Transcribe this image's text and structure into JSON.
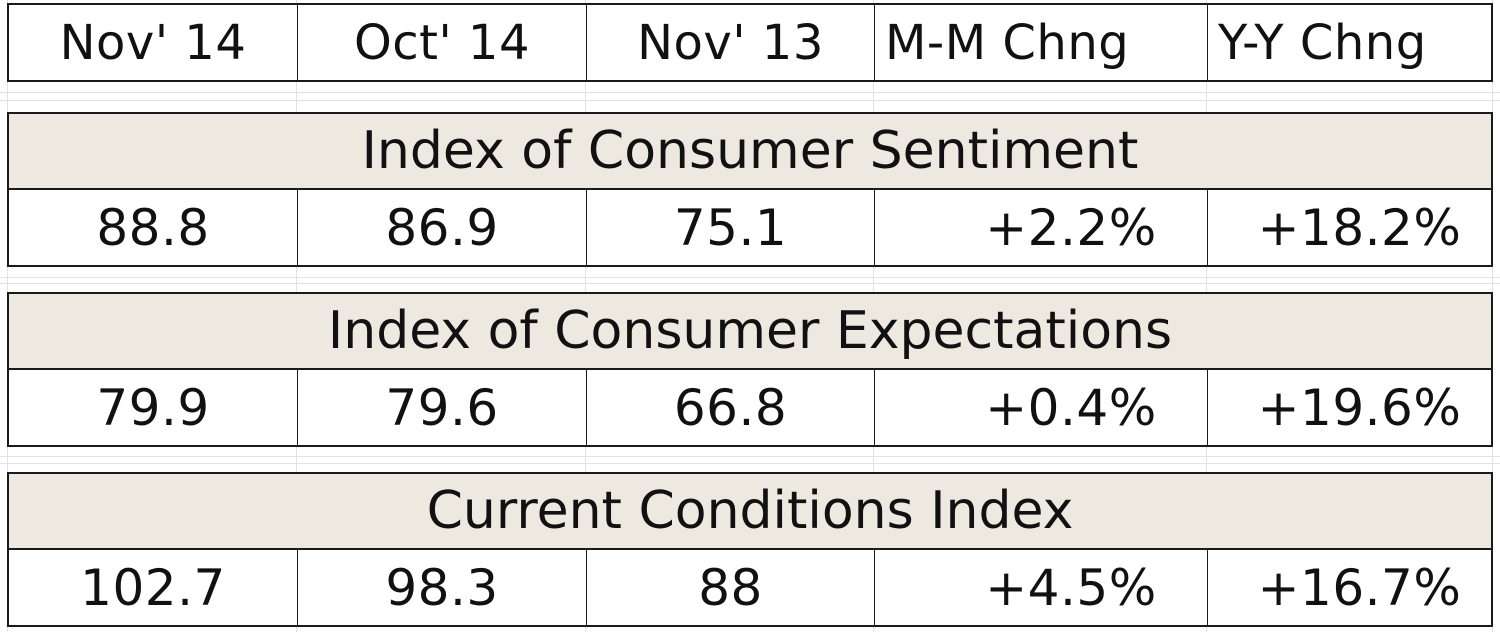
{
  "headers": [
    "Nov' 14",
    "Oct' 14",
    "Nov' 13",
    "M-M Chng",
    "Y-Y Chng"
  ],
  "sections": [
    {
      "title": "Index of Consumer Sentiment",
      "values": [
        "88.8",
        "86.9",
        "75.1",
        "+2.2%",
        "+18.2%"
      ]
    },
    {
      "title": "Index of Consumer Expectations",
      "values": [
        "79.9",
        "79.6",
        "66.8",
        "+0.4%",
        "+19.6%"
      ]
    },
    {
      "title": "Current Conditions Index",
      "values": [
        "102.7",
        "98.3",
        "88",
        "+4.5%",
        "+16.7%"
      ]
    }
  ],
  "colors": {
    "section_fill": "#ede9e0",
    "border": "#1a1a1a",
    "gridline": "#e2e2e2"
  }
}
